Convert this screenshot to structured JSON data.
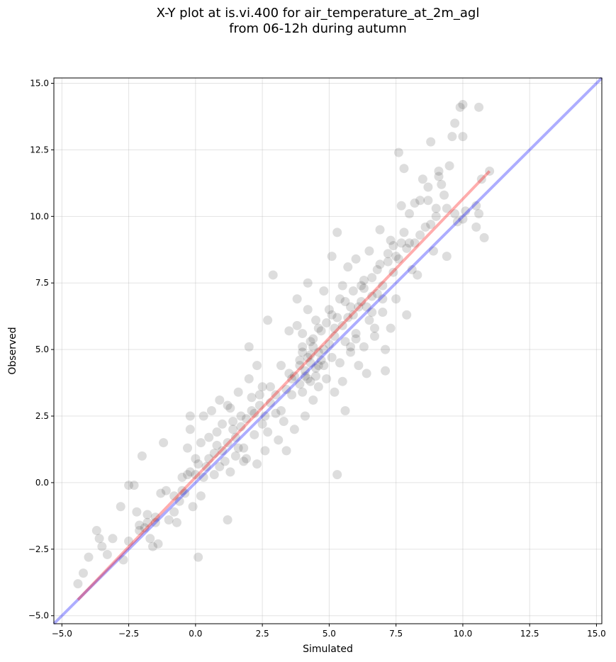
{
  "title_line1": "X-Y plot at is.vi.400 for air_temperature_at_2m_agl",
  "title_line2": "from 06-12h during autumn",
  "chart_data": {
    "type": "scatter",
    "xlabel": "Simulated",
    "ylabel": "Observed",
    "xlim": [
      -5.3,
      15.2
    ],
    "ylim": [
      -5.3,
      15.2
    ],
    "xticks": [
      -5.0,
      -2.5,
      0.0,
      2.5,
      5.0,
      7.5,
      10.0,
      12.5,
      15.0
    ],
    "yticks": [
      -5.0,
      -2.5,
      0.0,
      2.5,
      5.0,
      7.5,
      10.0,
      12.5,
      15.0
    ],
    "xtick_labels": [
      "−5.0",
      "−2.5",
      "0.0",
      "2.5",
      "5.0",
      "7.5",
      "10.0",
      "12.5",
      "15.0"
    ],
    "ytick_labels": [
      "−5.0",
      "−2.5",
      "0.0",
      "2.5",
      "5.0",
      "7.5",
      "10.0",
      "12.5",
      "15.0"
    ],
    "grid": true,
    "point_color": "#333333",
    "identity_line": {
      "from": [
        -5.3,
        -5.3
      ],
      "to": [
        15.2,
        15.2
      ],
      "color": "#0000ff"
    },
    "fit_line": {
      "from": [
        -4.4,
        -4.4
      ],
      "to": [
        11.0,
        11.7
      ],
      "color": "#ff0000"
    },
    "points": [
      [
        -4.4,
        -3.8
      ],
      [
        -4.2,
        -3.4
      ],
      [
        -4.0,
        -2.8
      ],
      [
        -3.7,
        -1.8
      ],
      [
        -3.6,
        -2.1
      ],
      [
        -3.5,
        -2.4
      ],
      [
        -3.1,
        -2.1
      ],
      [
        -2.8,
        -0.9
      ],
      [
        -2.7,
        -2.9
      ],
      [
        -2.5,
        -2.2
      ],
      [
        -2.5,
        -0.1
      ],
      [
        -2.3,
        -0.1
      ],
      [
        -2.2,
        -1.1
      ],
      [
        -2.1,
        -1.6
      ],
      [
        -2.0,
        1.0
      ],
      [
        -1.9,
        -1.7
      ],
      [
        -1.8,
        -1.2
      ],
      [
        -1.7,
        -2.1
      ],
      [
        -1.6,
        -2.4
      ],
      [
        -1.5,
        -1.5
      ],
      [
        -1.4,
        -2.3
      ],
      [
        -1.3,
        -0.4
      ],
      [
        -1.2,
        1.5
      ],
      [
        -1.1,
        -0.3
      ],
      [
        -1.0,
        -1.4
      ],
      [
        -0.8,
        -1.1
      ],
      [
        -0.7,
        -1.5
      ],
      [
        -0.6,
        -0.7
      ],
      [
        -0.5,
        0.2
      ],
      [
        -0.4,
        -0.4
      ],
      [
        -0.3,
        0.3
      ],
      [
        -0.3,
        1.3
      ],
      [
        -0.2,
        2.0
      ],
      [
        -0.2,
        2.5
      ],
      [
        -0.1,
        -0.9
      ],
      [
        0.0,
        0.9
      ],
      [
        0.1,
        0.7
      ],
      [
        0.1,
        -2.8
      ],
      [
        0.2,
        1.5
      ],
      [
        0.2,
        -0.5
      ],
      [
        0.3,
        2.5
      ],
      [
        0.4,
        0.6
      ],
      [
        0.5,
        1.7
      ],
      [
        0.6,
        2.7
      ],
      [
        0.7,
        1.1
      ],
      [
        0.7,
        0.3
      ],
      [
        0.8,
        1.9
      ],
      [
        0.9,
        3.1
      ],
      [
        1.0,
        2.2
      ],
      [
        1.1,
        0.8
      ],
      [
        1.2,
        1.5
      ],
      [
        1.2,
        -1.4
      ],
      [
        1.3,
        2.8
      ],
      [
        1.3,
        0.4
      ],
      [
        1.4,
        2.0
      ],
      [
        1.5,
        1.0
      ],
      [
        1.6,
        3.4
      ],
      [
        1.7,
        2.5
      ],
      [
        1.8,
        1.3
      ],
      [
        1.9,
        0.9
      ],
      [
        2.0,
        3.9
      ],
      [
        2.0,
        5.1
      ],
      [
        2.1,
        2.7
      ],
      [
        2.2,
        1.8
      ],
      [
        2.3,
        0.7
      ],
      [
        2.3,
        4.4
      ],
      [
        2.4,
        3.3
      ],
      [
        2.5,
        2.2
      ],
      [
        2.6,
        1.2
      ],
      [
        2.7,
        6.1
      ],
      [
        2.8,
        3.6
      ],
      [
        2.9,
        7.8
      ],
      [
        3.0,
        2.6
      ],
      [
        3.1,
        1.6
      ],
      [
        3.2,
        4.4
      ],
      [
        3.3,
        2.3
      ],
      [
        3.4,
        1.2
      ],
      [
        3.5,
        5.7
      ],
      [
        3.6,
        3.9
      ],
      [
        3.7,
        2.0
      ],
      [
        3.8,
        5.9
      ],
      [
        3.8,
        6.9
      ],
      [
        3.9,
        4.6
      ],
      [
        4.0,
        3.4
      ],
      [
        4.0,
        5.1
      ],
      [
        4.1,
        4.2
      ],
      [
        4.1,
        2.5
      ],
      [
        4.2,
        6.5
      ],
      [
        4.2,
        7.5
      ],
      [
        4.3,
        4.8
      ],
      [
        4.3,
        3.8
      ],
      [
        4.4,
        5.4
      ],
      [
        4.4,
        3.1
      ],
      [
        4.5,
        4.3
      ],
      [
        4.5,
        6.1
      ],
      [
        4.6,
        4.9
      ],
      [
        4.6,
        3.6
      ],
      [
        4.7,
        5.7
      ],
      [
        4.8,
        4.4
      ],
      [
        4.8,
        7.2
      ],
      [
        4.9,
        3.9
      ],
      [
        5.0,
        5.2
      ],
      [
        5.0,
        6.5
      ],
      [
        5.1,
        4.7
      ],
      [
        5.1,
        8.5
      ],
      [
        5.2,
        3.4
      ],
      [
        5.2,
        5.8
      ],
      [
        5.3,
        9.4
      ],
      [
        5.3,
        0.3
      ],
      [
        5.4,
        4.5
      ],
      [
        5.4,
        6.9
      ],
      [
        5.5,
        3.8
      ],
      [
        5.5,
        7.4
      ],
      [
        5.6,
        2.7
      ],
      [
        5.6,
        5.3
      ],
      [
        5.7,
        8.1
      ],
      [
        5.8,
        4.9
      ],
      [
        5.8,
        6.6
      ],
      [
        5.9,
        7.2
      ],
      [
        6.0,
        5.6
      ],
      [
        6.0,
        8.4
      ],
      [
        6.1,
        4.4
      ],
      [
        6.2,
        6.8
      ],
      [
        6.3,
        7.6
      ],
      [
        6.3,
        5.1
      ],
      [
        6.4,
        4.1
      ],
      [
        6.5,
        8.7
      ],
      [
        6.5,
        6.1
      ],
      [
        6.6,
        7.0
      ],
      [
        6.7,
        5.5
      ],
      [
        6.8,
        8.0
      ],
      [
        6.9,
        9.5
      ],
      [
        7.0,
        6.4
      ],
      [
        7.0,
        7.4
      ],
      [
        7.1,
        5.0
      ],
      [
        7.1,
        4.2
      ],
      [
        7.2,
        8.3
      ],
      [
        7.3,
        9.1
      ],
      [
        7.3,
        5.8
      ],
      [
        7.4,
        7.9
      ],
      [
        7.5,
        8.5
      ],
      [
        7.5,
        6.9
      ],
      [
        7.6,
        12.4
      ],
      [
        7.7,
        10.4
      ],
      [
        7.7,
        9.0
      ],
      [
        7.8,
        11.8
      ],
      [
        7.9,
        6.3
      ],
      [
        8.0,
        10.1
      ],
      [
        8.1,
        8.0
      ],
      [
        8.2,
        9.0
      ],
      [
        8.3,
        7.8
      ],
      [
        8.4,
        10.6
      ],
      [
        8.5,
        11.4
      ],
      [
        8.6,
        9.6
      ],
      [
        8.7,
        10.6
      ],
      [
        8.8,
        12.8
      ],
      [
        8.9,
        8.7
      ],
      [
        9.0,
        10.3
      ],
      [
        9.1,
        11.7
      ],
      [
        9.2,
        11.2
      ],
      [
        9.3,
        10.8
      ],
      [
        9.4,
        8.5
      ],
      [
        9.5,
        11.9
      ],
      [
        9.6,
        13.0
      ],
      [
        9.7,
        13.5
      ],
      [
        9.8,
        9.8
      ],
      [
        9.9,
        14.1
      ],
      [
        10.0,
        14.2
      ],
      [
        10.0,
        13.0
      ],
      [
        10.1,
        10.2
      ],
      [
        10.5,
        10.4
      ],
      [
        10.5,
        9.6
      ],
      [
        10.6,
        14.1
      ],
      [
        10.6,
        10.1
      ],
      [
        10.7,
        11.4
      ],
      [
        10.8,
        9.2
      ],
      [
        11.0,
        11.7
      ],
      [
        9.1,
        11.5
      ],
      [
        8.7,
        11.1
      ],
      [
        8.2,
        10.5
      ],
      [
        3.5,
        4.1
      ],
      [
        3.9,
        4.4
      ],
      [
        4.2,
        4.7
      ],
      [
        4.3,
        4.5
      ],
      [
        4.5,
        4.0
      ],
      [
        4.7,
        4.6
      ],
      [
        3.7,
        4.0
      ],
      [
        4.0,
        4.9
      ],
      [
        4.4,
        5.1
      ],
      [
        4.1,
        4.0
      ],
      [
        3.9,
        3.7
      ],
      [
        4.6,
        4.4
      ],
      [
        4.8,
        5.0
      ],
      [
        3.6,
        3.3
      ],
      [
        4.2,
        3.9
      ],
      [
        5.2,
        5.5
      ],
      [
        5.5,
        5.9
      ],
      [
        5.7,
        6.2
      ],
      [
        5.9,
        6.3
      ],
      [
        6.1,
        6.6
      ],
      [
        2.6,
        2.5
      ],
      [
        2.8,
        3.0
      ],
      [
        3.0,
        3.3
      ],
      [
        2.4,
        2.9
      ],
      [
        2.2,
        2.6
      ],
      [
        1.9,
        2.4
      ],
      [
        1.7,
        2.1
      ],
      [
        1.5,
        1.7
      ],
      [
        1.0,
        1.2
      ],
      [
        0.8,
        1.4
      ],
      [
        0.5,
        0.9
      ],
      [
        0.3,
        0.2
      ],
      [
        0.0,
        0.3
      ],
      [
        -0.2,
        0.4
      ],
      [
        -0.5,
        -0.3
      ],
      [
        -0.8,
        -0.5
      ],
      [
        -1.5,
        -1.3
      ],
      [
        -1.8,
        -1.5
      ],
      [
        -2.1,
        -1.8
      ],
      [
        -3.3,
        -2.7
      ],
      [
        6.3,
        7.3
      ],
      [
        6.6,
        7.7
      ],
      [
        6.9,
        8.2
      ],
      [
        7.2,
        8.6
      ],
      [
        7.4,
        8.9
      ],
      [
        7.6,
        8.4
      ],
      [
        7.8,
        9.4
      ],
      [
        8.0,
        9.0
      ],
      [
        8.4,
        9.3
      ],
      [
        8.8,
        9.7
      ],
      [
        9.0,
        10.0
      ],
      [
        9.4,
        10.3
      ],
      [
        9.7,
        10.1
      ],
      [
        10.0,
        9.9
      ],
      [
        7.9,
        8.8
      ],
      [
        6.8,
        7.1
      ],
      [
        6.4,
        6.6
      ],
      [
        6.2,
        7.4
      ],
      [
        5.6,
        6.8
      ],
      [
        5.3,
        6.2
      ],
      [
        2.1,
        3.2
      ],
      [
        2.5,
        3.6
      ],
      [
        2.7,
        1.9
      ],
      [
        3.2,
        2.7
      ],
      [
        3.4,
        3.5
      ],
      [
        1.2,
        2.9
      ],
      [
        1.4,
        2.3
      ],
      [
        1.6,
        1.3
      ],
      [
        1.8,
        0.8
      ],
      [
        0.9,
        0.6
      ],
      [
        4.9,
        6.0
      ],
      [
        5.1,
        6.3
      ],
      [
        4.6,
        5.8
      ],
      [
        4.3,
        5.3
      ],
      [
        4.0,
        5.6
      ],
      [
        5.8,
        5.1
      ],
      [
        6.0,
        5.4
      ],
      [
        6.6,
        6.4
      ],
      [
        6.7,
        5.8
      ],
      [
        7.0,
        6.9
      ]
    ]
  }
}
